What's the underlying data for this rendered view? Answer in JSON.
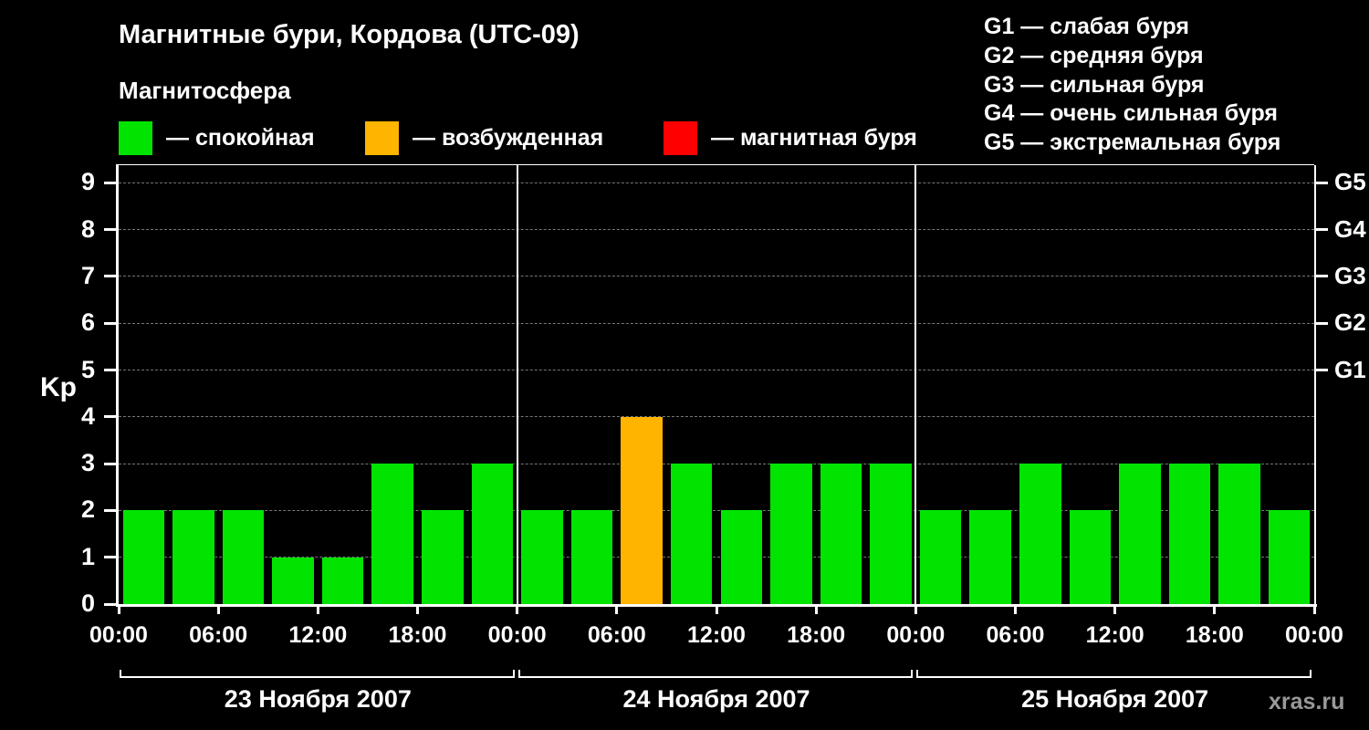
{
  "header": {
    "title": "Магнитные бури, Кордова (UTC-09)",
    "subtitle": "Магнитосфера",
    "legend": [
      {
        "label": "— спокойная",
        "color": "#00e400"
      },
      {
        "label": "— возбужденная",
        "color": "#ffb400"
      },
      {
        "label": "— магнитная буря",
        "color": "#ff0000"
      }
    ],
    "g_legend": [
      "G1 — слабая буря",
      "G2 — средняя буря",
      "G3 — сильная буря",
      "G4 — очень сильная буря",
      "G5 — экстремальная буря"
    ]
  },
  "chart_data": {
    "type": "bar",
    "title": "Магнитные бури, Кордова (UTC-09)",
    "ylabel": "Kp",
    "ylim": [
      0,
      9.4
    ],
    "y_ticks": [
      0,
      1,
      2,
      3,
      4,
      5,
      6,
      7,
      8,
      9
    ],
    "right_axis": [
      {
        "label": "G5",
        "value": 9
      },
      {
        "label": "G4",
        "value": 8
      },
      {
        "label": "G3",
        "value": 7
      },
      {
        "label": "G2",
        "value": 6
      },
      {
        "label": "G1",
        "value": 5
      }
    ],
    "x_tick_labels": [
      "00:00",
      "06:00",
      "12:00",
      "18:00"
    ],
    "x_tick_final": "00:00",
    "interval_hours": 3,
    "days": [
      {
        "date": "23 Ноября 2007",
        "values": [
          2,
          2,
          2,
          1,
          1,
          3,
          2,
          3
        ]
      },
      {
        "date": "24 Ноября 2007",
        "values": [
          2,
          2,
          4,
          3,
          2,
          3,
          3,
          3
        ]
      },
      {
        "date": "25 Ноября 2007",
        "values": [
          2,
          2,
          3,
          2,
          3,
          3,
          3,
          2
        ]
      }
    ],
    "colors": {
      "quiet": "#00e400",
      "excited": "#ffb400",
      "storm": "#ff0000"
    },
    "thresholds": {
      "excited_min": 4,
      "storm_min": 5
    },
    "grid": "dashed horizontal"
  },
  "watermark": "xras.ru"
}
